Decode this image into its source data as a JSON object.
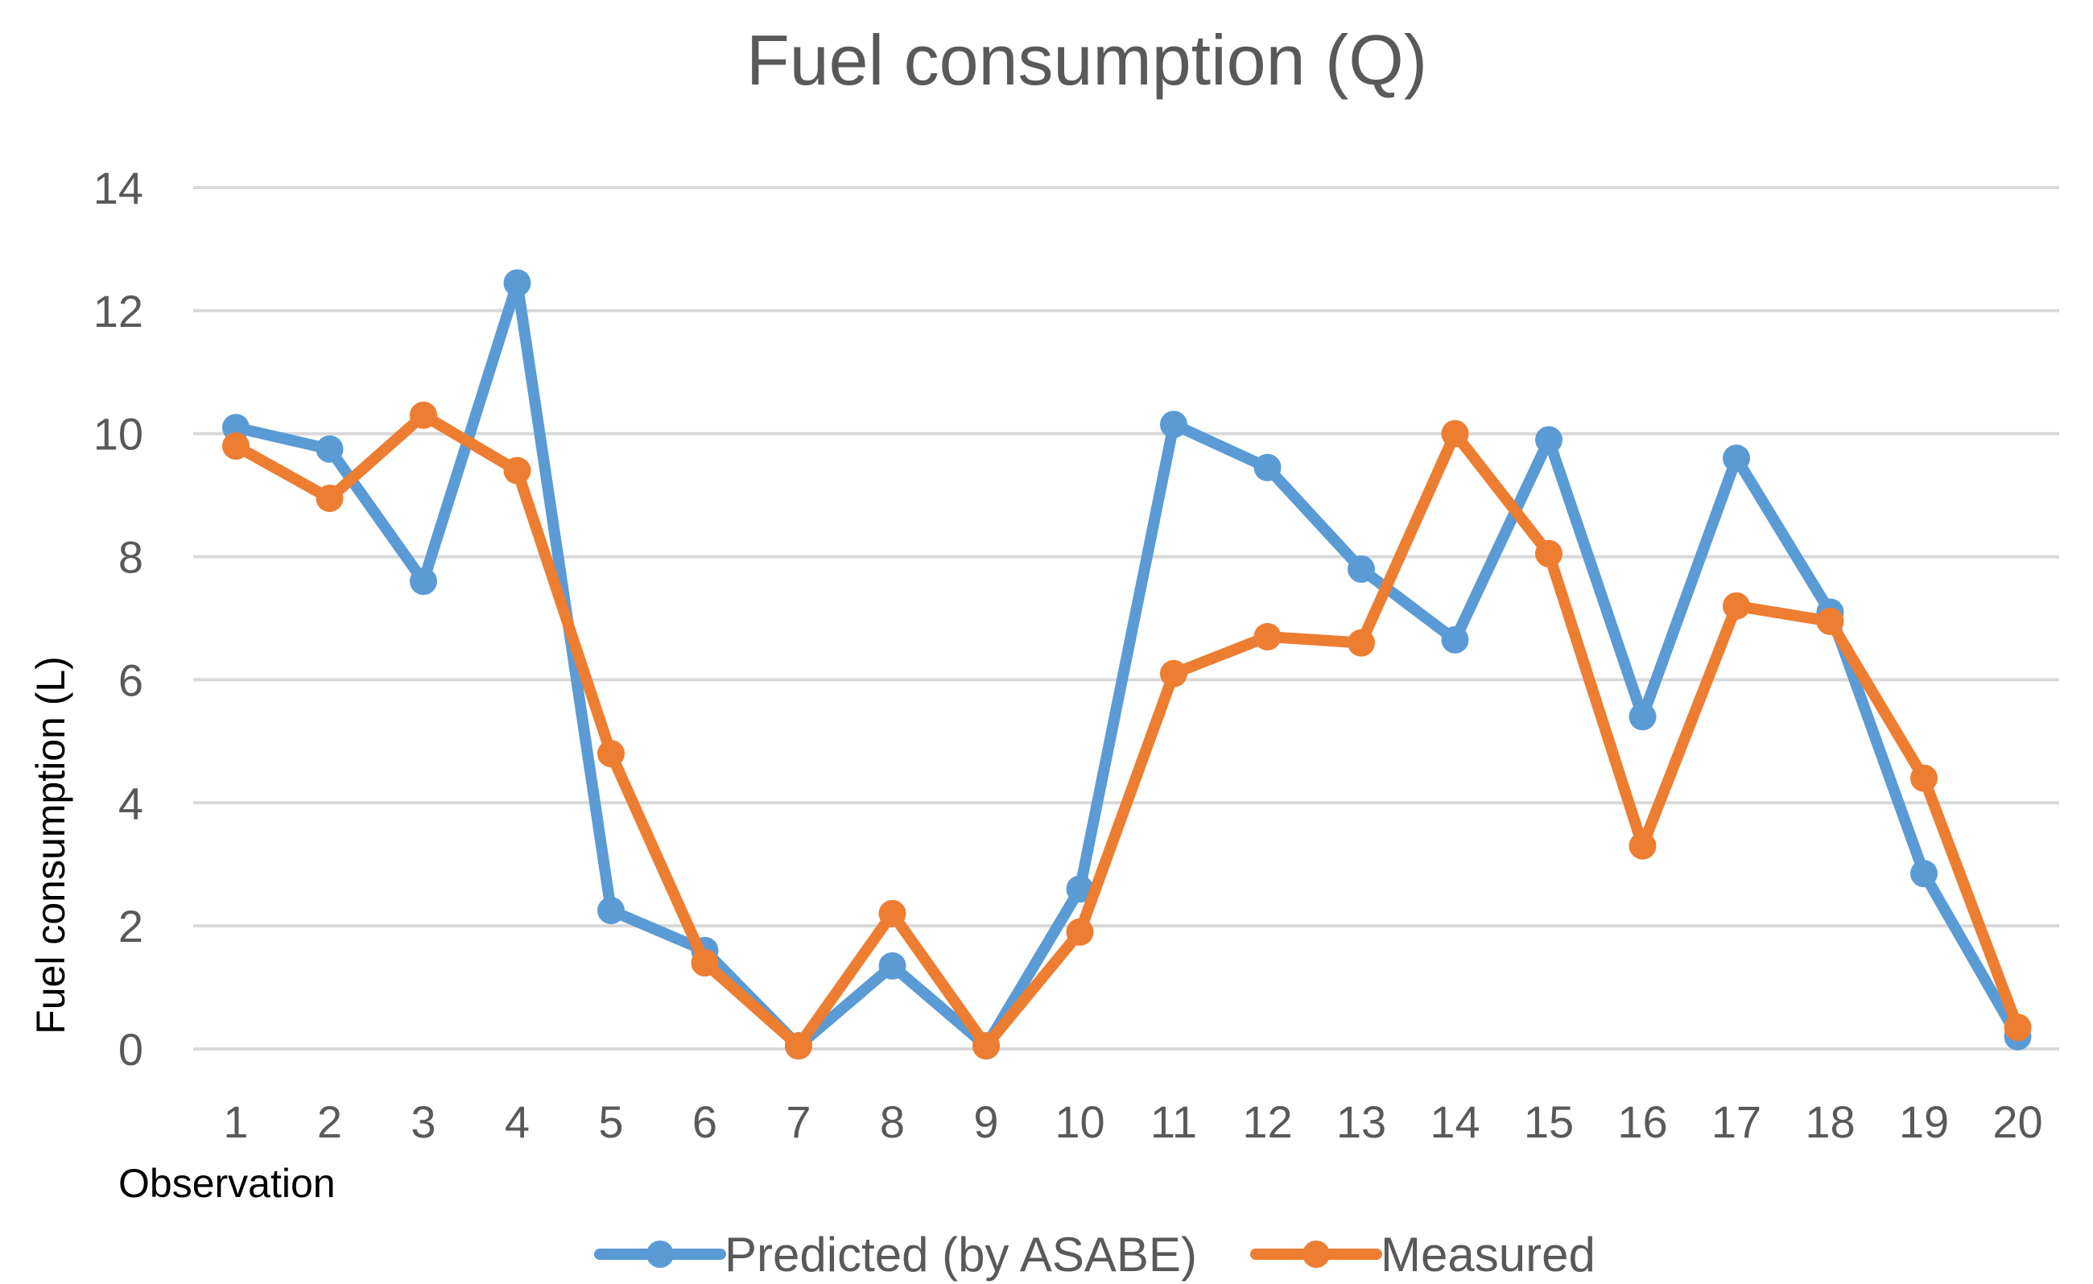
{
  "chart_data": {
    "type": "line",
    "title": "Fuel consumption (Q)",
    "xlabel": "Observation",
    "ylabel": "Fuel consumption (L)",
    "ylim": [
      0,
      14
    ],
    "yticks": [
      0,
      2,
      4,
      6,
      8,
      10,
      12,
      14
    ],
    "grid": true,
    "legend_position": "bottom",
    "categories": [
      "1",
      "2",
      "3",
      "4",
      "5",
      "6",
      "7",
      "8",
      "9",
      "10",
      "11",
      "12",
      "13",
      "14",
      "15",
      "16",
      "17",
      "18",
      "19",
      "20"
    ],
    "series": [
      {
        "name": "Predicted (by ASABE)",
        "color": "#5b9bd5",
        "values": [
          10.1,
          9.75,
          7.6,
          12.45,
          2.25,
          1.6,
          0.05,
          1.35,
          0.05,
          2.6,
          10.15,
          9.45,
          7.8,
          6.65,
          9.9,
          5.4,
          9.6,
          7.1,
          2.85,
          0.2
        ]
      },
      {
        "name": "Measured",
        "color": "#ed7d31",
        "values": [
          9.8,
          8.95,
          10.3,
          9.4,
          4.8,
          1.4,
          0.05,
          2.2,
          0.05,
          1.9,
          6.1,
          6.7,
          6.6,
          10.0,
          8.05,
          3.3,
          7.2,
          6.95,
          4.4,
          0.35
        ]
      }
    ]
  }
}
